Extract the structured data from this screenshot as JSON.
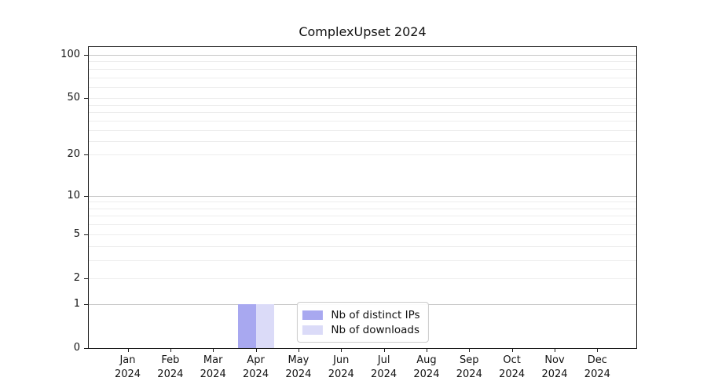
{
  "chart_data": {
    "type": "bar",
    "title": "ComplexUpset 2024",
    "x_categories": [
      {
        "month": "Jan",
        "year": "2024"
      },
      {
        "month": "Feb",
        "year": "2024"
      },
      {
        "month": "Mar",
        "year": "2024"
      },
      {
        "month": "Apr",
        "year": "2024"
      },
      {
        "month": "May",
        "year": "2024"
      },
      {
        "month": "Jun",
        "year": "2024"
      },
      {
        "month": "Jul",
        "year": "2024"
      },
      {
        "month": "Aug",
        "year": "2024"
      },
      {
        "month": "Sep",
        "year": "2024"
      },
      {
        "month": "Oct",
        "year": "2024"
      },
      {
        "month": "Nov",
        "year": "2024"
      },
      {
        "month": "Dec",
        "year": "2024"
      }
    ],
    "series": [
      {
        "name": "Nb of distinct IPs",
        "color": "#a8a8f0",
        "values": [
          0,
          0,
          0,
          1,
          0,
          0,
          0,
          0,
          0,
          0,
          0,
          0
        ]
      },
      {
        "name": "Nb of downloads",
        "color": "#dbdbf8",
        "values": [
          0,
          0,
          0,
          1,
          0,
          0,
          0,
          0,
          0,
          0,
          0,
          0
        ]
      }
    ],
    "y_axis": {
      "scale": "log1p",
      "ticks": [
        0,
        1,
        2,
        5,
        10,
        20,
        50,
        100
      ],
      "major_gridlines": [
        1,
        10,
        100
      ],
      "minor_gridlines": [
        3,
        4,
        6,
        7,
        8,
        9,
        25,
        30,
        35,
        40,
        45,
        60,
        70,
        80,
        90
      ],
      "ylim": [
        0,
        113
      ]
    },
    "legend": {
      "position": "lower center"
    }
  }
}
